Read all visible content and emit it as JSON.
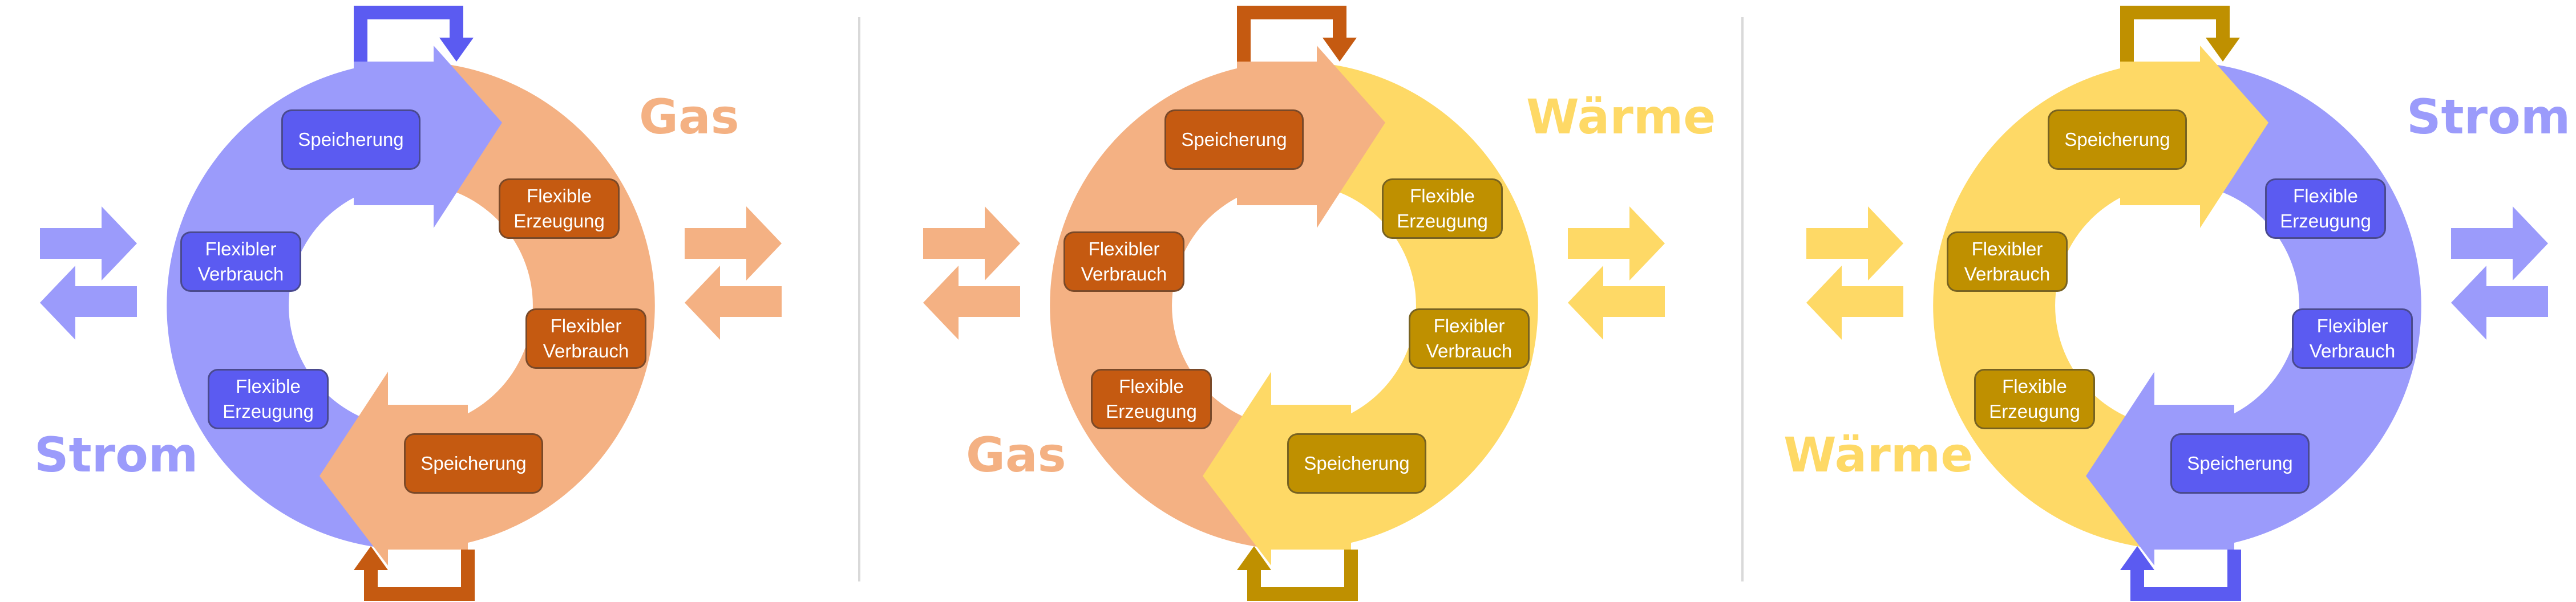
{
  "colors": {
    "strom_light": "#9b9bfb",
    "strom_dark": "#5b5bf1",
    "gas_light": "#f4b183",
    "gas_dark": "#c55a11",
    "waerme_light": "#fed966",
    "waerme_dark": "#bf9000"
  },
  "panels": [
    {
      "left_label": "Strom",
      "right_label": "Gas",
      "left_boxes": [
        {
          "line1": "Speicherung",
          "line2": ""
        },
        {
          "line1": "Flexibler",
          "line2": "Verbrauch"
        },
        {
          "line1": "Flexible",
          "line2": "Erzeugung"
        }
      ],
      "right_boxes": [
        {
          "line1": "Flexible",
          "line2": "Erzeugung"
        },
        {
          "line1": "Flexibler",
          "line2": "Verbrauch"
        },
        {
          "line1": "Speicherung",
          "line2": ""
        }
      ]
    },
    {
      "left_label": "Gas",
      "right_label": "Wärme",
      "left_boxes": [
        {
          "line1": "Speicherung",
          "line2": ""
        },
        {
          "line1": "Flexibler",
          "line2": "Verbrauch"
        },
        {
          "line1": "Flexible",
          "line2": "Erzeugung"
        }
      ],
      "right_boxes": [
        {
          "line1": "Flexible",
          "line2": "Erzeugung"
        },
        {
          "line1": "Flexibler",
          "line2": "Verbrauch"
        },
        {
          "line1": "Speicherung",
          "line2": ""
        }
      ]
    },
    {
      "left_label": "Wärme",
      "right_label": "Strom",
      "left_boxes": [
        {
          "line1": "Speicherung",
          "line2": ""
        },
        {
          "line1": "Flexibler",
          "line2": "Verbrauch"
        },
        {
          "line1": "Flexible",
          "line2": "Erzeugung"
        }
      ],
      "right_boxes": [
        {
          "line1": "Flexible",
          "line2": "Erzeugung"
        },
        {
          "line1": "Flexibler",
          "line2": "Verbrauch"
        },
        {
          "line1": "Speicherung",
          "line2": ""
        }
      ]
    }
  ]
}
